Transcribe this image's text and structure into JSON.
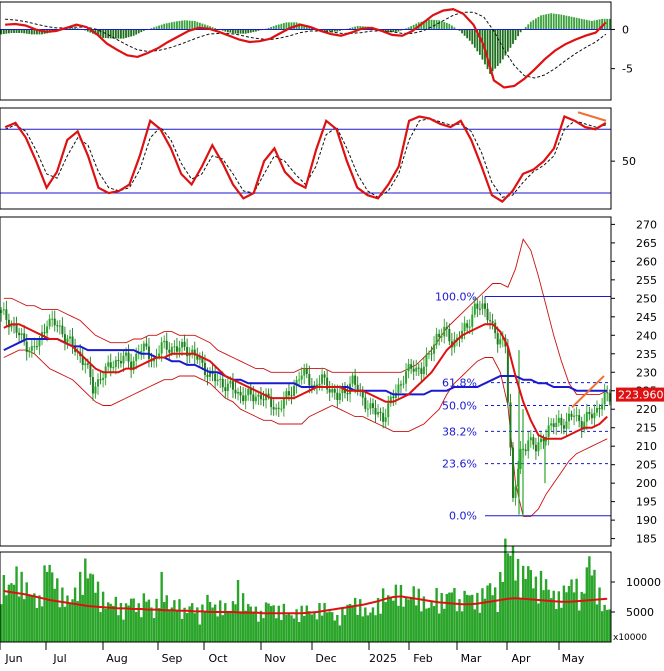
{
  "colors": {
    "up_bar": "#2aa52a",
    "down_bar": "#1f7a1f",
    "macd_hist_pos": "#3aa03a",
    "macd_hist_neg": "#1e6f1e",
    "macd_line": "#dd1111",
    "signal_line": "#111111",
    "ma_blue": "#1a1ad0",
    "ma_red": "#dd1111",
    "bollinger": "#cc1111",
    "fib_line": "#1a1ad0",
    "fib_text": "#1a1ad0",
    "trend_orange": "#f07030",
    "grid": "#000000",
    "price_tag_bg": "#dd1111",
    "price_tag_text": "#ffffff"
  },
  "chart_data": [
    {
      "panel": "macd",
      "type": "line",
      "y_ticks": [
        "0",
        "-5"
      ],
      "ylim": [
        -9,
        3.5
      ],
      "series": [
        {
          "role": "macd",
          "values": [
            0.6,
            0.7,
            0.5,
            0.0,
            -0.3,
            -0.2,
            0.2,
            0.6,
            0.3,
            -0.6,
            -1.8,
            -2.6,
            -3.3,
            -3.5,
            -3.0,
            -2.4,
            -1.6,
            -0.9,
            -0.2,
            0.2,
            0.1,
            -0.3,
            -0.8,
            -1.3,
            -1.6,
            -1.5,
            -1.2,
            -0.5,
            0.2,
            0.6,
            0.3,
            -0.2,
            -0.6,
            -0.8,
            -0.4,
            0.1,
            0.2,
            -0.2,
            -0.7,
            -0.8,
            -0.2,
            0.8,
            1.8,
            2.4,
            2.6,
            2.0,
            0.6,
            -2.0,
            -6.5,
            -7.4,
            -7.2,
            -6.3,
            -5.1,
            -3.8,
            -2.7,
            -1.9,
            -1.3,
            -0.8,
            -0.4,
            0.9
          ]
        },
        {
          "role": "signal",
          "values": [
            1.3,
            1.2,
            1.0,
            0.7,
            0.4,
            0.2,
            0.2,
            0.3,
            0.3,
            0.0,
            -0.6,
            -1.3,
            -2.0,
            -2.6,
            -2.8,
            -2.7,
            -2.4,
            -2.0,
            -1.5,
            -1.0,
            -0.6,
            -0.5,
            -0.5,
            -0.7,
            -1.0,
            -1.2,
            -1.3,
            -1.1,
            -0.8,
            -0.4,
            -0.2,
            -0.2,
            -0.3,
            -0.5,
            -0.5,
            -0.4,
            -0.2,
            -0.2,
            -0.3,
            -0.5,
            -0.5,
            -0.2,
            0.4,
            1.1,
            1.8,
            2.2,
            2.2,
            1.6,
            -0.2,
            -2.6,
            -4.6,
            -5.9,
            -6.2,
            -5.8,
            -5.0,
            -4.0,
            -3.1,
            -2.3,
            -1.6,
            -0.6
          ]
        }
      ]
    },
    {
      "panel": "stochastic",
      "type": "line",
      "y_ticks": [
        "50"
      ],
      "ylim": [
        0,
        100
      ],
      "guide_lines": [
        80,
        20
      ],
      "series": [
        {
          "role": "k",
          "values": [
            82,
            86,
            72,
            50,
            25,
            40,
            70,
            78,
            55,
            25,
            20,
            22,
            28,
            55,
            88,
            80,
            62,
            38,
            28,
            45,
            65,
            48,
            28,
            15,
            20,
            50,
            62,
            40,
            30,
            25,
            60,
            88,
            80,
            50,
            25,
            18,
            15,
            28,
            45,
            88,
            92,
            90,
            85,
            82,
            88,
            70,
            45,
            18,
            12,
            22,
            38,
            42,
            50,
            62,
            92,
            88,
            82,
            80,
            86
          ]
        },
        {
          "role": "d",
          "values": [
            80,
            84,
            78,
            60,
            38,
            34,
            55,
            72,
            65,
            40,
            25,
            22,
            25,
            42,
            72,
            82,
            70,
            48,
            33,
            38,
            55,
            52,
            38,
            22,
            20,
            38,
            55,
            50,
            38,
            28,
            45,
            75,
            82,
            62,
            38,
            22,
            16,
            22,
            38,
            70,
            88,
            90,
            87,
            84,
            85,
            78,
            58,
            30,
            16,
            18,
            30,
            40,
            46,
            55,
            80,
            88,
            85,
            82,
            84
          ]
        }
      ]
    },
    {
      "panel": "price",
      "type": "candlestick",
      "ylim": [
        183,
        272
      ],
      "y_ticks": [
        "185",
        "190",
        "195",
        "200",
        "205",
        "210",
        "215",
        "220",
        "225",
        "230",
        "235",
        "240",
        "245",
        "250",
        "255",
        "260",
        "265",
        "270"
      ],
      "x_tick_labels": [
        "Jun",
        "Jul",
        "Aug",
        "Sep",
        "Oct",
        "Nov",
        "Dec",
        "2025",
        "Feb",
        "Mar",
        "Apr",
        "May"
      ],
      "close": [
        246,
        244,
        241,
        238,
        236,
        238,
        244,
        243,
        241,
        238,
        235,
        233,
        225,
        229,
        231,
        233,
        234,
        232,
        236,
        236,
        233,
        237,
        237,
        236,
        237,
        235,
        233,
        230,
        228,
        227,
        226,
        224,
        224,
        223,
        224,
        222,
        220,
        222,
        225,
        229,
        229,
        226,
        228,
        226,
        223,
        225,
        228,
        224,
        221,
        219,
        218,
        222,
        226,
        230,
        231,
        231,
        234,
        240,
        241,
        238,
        240,
        242,
        248,
        247,
        245,
        238,
        238,
        195,
        208,
        212,
        209,
        213,
        215,
        217,
        216,
        219,
        216,
        218,
        220,
        223
      ],
      "ma_blue": [
        236,
        237,
        238,
        239,
        239,
        239,
        239,
        239,
        238,
        237,
        237,
        236,
        236,
        236,
        236,
        236,
        236,
        236,
        235,
        235,
        234,
        234,
        233,
        233,
        232,
        232,
        231,
        230,
        230,
        229,
        228,
        228,
        227,
        227,
        227,
        227,
        227,
        227,
        227,
        226,
        226,
        226,
        226,
        226,
        226,
        226,
        225,
        225,
        225,
        225,
        225,
        224,
        224,
        224,
        224,
        224,
        225,
        225,
        225,
        226,
        226,
        226,
        226,
        227,
        228,
        229,
        229,
        229,
        228,
        228,
        227,
        227,
        226,
        226,
        226,
        225,
        225,
        225,
        225,
        225
      ],
      "ma_red": [
        242,
        243,
        243,
        242,
        241,
        240,
        239,
        239,
        238,
        237,
        235,
        233,
        231,
        230,
        230,
        230,
        231,
        231,
        232,
        233,
        234,
        234,
        235,
        235,
        235,
        235,
        234,
        233,
        231,
        229,
        228,
        227,
        226,
        225,
        224,
        223,
        223,
        223,
        223,
        224,
        225,
        226,
        226,
        226,
        226,
        225,
        225,
        225,
        224,
        223,
        222,
        222,
        223,
        224,
        226,
        228,
        230,
        233,
        236,
        238,
        240,
        241,
        242,
        243,
        243,
        241,
        237,
        229,
        222,
        217,
        213,
        212,
        212,
        212,
        213,
        214,
        215,
        215,
        216,
        218
      ],
      "bb_upper": [
        250,
        250,
        249,
        248,
        248,
        247,
        247,
        247,
        246,
        245,
        244,
        242,
        240,
        239,
        238,
        238,
        238,
        239,
        239,
        240,
        240,
        241,
        241,
        240,
        240,
        240,
        239,
        238,
        236,
        235,
        234,
        233,
        232,
        231,
        231,
        230,
        230,
        230,
        230,
        231,
        231,
        231,
        231,
        230,
        230,
        230,
        230,
        230,
        230,
        230,
        230,
        230,
        230,
        231,
        232,
        234,
        236,
        239,
        242,
        244,
        246,
        248,
        250,
        252,
        254,
        254,
        253,
        258,
        266,
        263,
        256,
        248,
        240,
        233,
        227,
        224,
        224,
        224,
        224,
        225
      ],
      "bb_lower": [
        234,
        235,
        236,
        236,
        235,
        233,
        231,
        230,
        229,
        228,
        226,
        224,
        222,
        221,
        221,
        222,
        223,
        224,
        225,
        226,
        227,
        228,
        228,
        229,
        229,
        229,
        228,
        227,
        225,
        223,
        222,
        220,
        219,
        218,
        217,
        217,
        216,
        216,
        216,
        216,
        218,
        219,
        220,
        221,
        220,
        219,
        218,
        218,
        217,
        216,
        215,
        214,
        214,
        214,
        215,
        216,
        218,
        220,
        224,
        227,
        229,
        231,
        233,
        234,
        234,
        230,
        221,
        200,
        191,
        191,
        193,
        197,
        200,
        203,
        206,
        208,
        209,
        210,
        211,
        212
      ],
      "fibonacci": [
        {
          "label": "100.0%",
          "value": 250.5
        },
        {
          "label": "61.8%",
          "value": 227.2
        },
        {
          "label": "50.0%",
          "value": 221.0
        },
        {
          "label": "38.2%",
          "value": 214.0
        },
        {
          "label": "23.6%",
          "value": 205.3
        },
        {
          "label": "0.0%",
          "value": 191.2
        }
      ],
      "last_price_label": "223.9600",
      "last_price": 223.96
    },
    {
      "panel": "volume",
      "type": "bar",
      "unit_label": "x10000",
      "y_ticks": [
        "10000",
        "5000"
      ],
      "ylim": [
        0,
        15000
      ],
      "volume_ma": [
        8500,
        8300,
        8100,
        7900,
        7600,
        7300,
        7000,
        6800,
        6600,
        6400,
        6200,
        6000,
        5900,
        5800,
        5700,
        5600,
        5600,
        5500,
        5500,
        5400,
        5400,
        5300,
        5300,
        5200,
        5200,
        5100,
        5100,
        5000,
        5000,
        5000,
        5000,
        4900,
        4900,
        4900,
        4800,
        4800,
        4800,
        4800,
        4800,
        4800,
        4900,
        5000,
        5200,
        5400,
        5600,
        5800,
        6000,
        6200,
        6500,
        6800,
        7200,
        7500,
        7600,
        7400,
        7200,
        7000,
        6800,
        6600,
        6500,
        6400,
        6300,
        6300,
        6400,
        6600,
        6800,
        7000,
        7200,
        7300,
        7200,
        7100,
        7000,
        6900,
        6800,
        6700,
        6700,
        6800,
        6900,
        7000,
        7100,
        7200
      ],
      "volume": [
        9000,
        8000,
        10000,
        8500,
        7000,
        6000,
        12000,
        9000,
        7000,
        6000,
        8000,
        11000,
        9500,
        7000,
        5500,
        6000,
        4500,
        6500,
        5000,
        7000,
        4000,
        9000,
        5000,
        6000,
        4500,
        5500,
        4000,
        6500,
        5000,
        5500,
        4500,
        8000,
        5500,
        5000,
        4000,
        6000,
        4500,
        5000,
        3800,
        4500,
        5000,
        4000,
        5500,
        4500,
        3500,
        4800,
        6000,
        5500,
        4200,
        5000,
        7000,
        6500,
        8000,
        6000,
        7500,
        6500,
        5000,
        7000,
        6000,
        8000,
        5500,
        7500,
        6000,
        7000,
        8500,
        6500,
        14000,
        13000,
        9500,
        11000,
        8500,
        9500,
        7000,
        6500,
        8000,
        9000,
        6500,
        12500,
        8000,
        5000
      ]
    }
  ]
}
